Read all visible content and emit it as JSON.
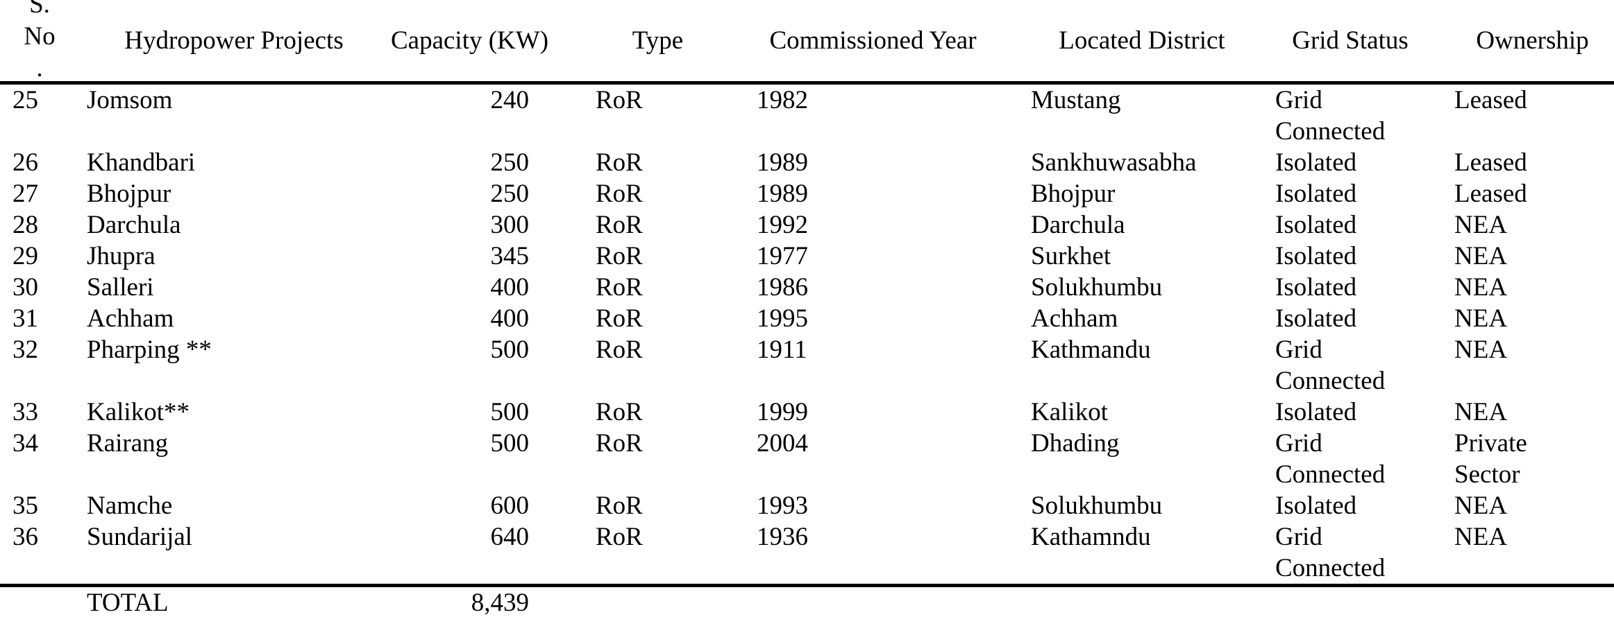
{
  "page": {
    "background": "#ffffff",
    "text_color": "#000000",
    "rule_color": "#000000"
  },
  "table": {
    "headers": {
      "sn": "S.\nNo\n.",
      "project": "Hydropower Projects",
      "capacity": "Capacity (KW)",
      "type": "Type",
      "year": "Commissioned Year",
      "district": "Located District",
      "grid": "Grid Status",
      "ownership": "Ownership"
    },
    "rows": [
      {
        "sn": "25",
        "project": "Jomsom",
        "capacity": "240",
        "type": "RoR",
        "year": "1982",
        "district": "Mustang",
        "grid": "Grid\nConnected",
        "ownership": "Leased"
      },
      {
        "sn": "26",
        "project": "Khandbari",
        "capacity": "250",
        "type": "RoR",
        "year": "1989",
        "district": "Sankhuwasabha",
        "grid": "Isolated",
        "ownership": "Leased"
      },
      {
        "sn": "27",
        "project": "Bhojpur",
        "capacity": "250",
        "type": "RoR",
        "year": "1989",
        "district": "Bhojpur",
        "grid": "Isolated",
        "ownership": "Leased"
      },
      {
        "sn": "28",
        "project": "Darchula",
        "capacity": "300",
        "type": "RoR",
        "year": "1992",
        "district": "Darchula",
        "grid": "Isolated",
        "ownership": "NEA"
      },
      {
        "sn": "29",
        "project": "Jhupra",
        "capacity": "345",
        "type": "RoR",
        "year": "1977",
        "district": "Surkhet",
        "grid": "Isolated",
        "ownership": "NEA"
      },
      {
        "sn": "30",
        "project": "Salleri",
        "capacity": "400",
        "type": "RoR",
        "year": "1986",
        "district": "Solukhumbu",
        "grid": "Isolated",
        "ownership": "NEA"
      },
      {
        "sn": "31",
        "project": "Achham",
        "capacity": "400",
        "type": "RoR",
        "year": "1995",
        "district": "Achham",
        "grid": "Isolated",
        "ownership": "NEA"
      },
      {
        "sn": "32",
        "project": "Pharping **",
        "capacity": "500",
        "type": "RoR",
        "year": "1911",
        "district": "Kathmandu",
        "grid": "Grid\nConnected",
        "ownership": "NEA"
      },
      {
        "sn": "33",
        "project": "Kalikot**",
        "capacity": "500",
        "type": "RoR",
        "year": "1999",
        "district": "Kalikot",
        "grid": "Isolated",
        "ownership": "NEA"
      },
      {
        "sn": "34",
        "project": "Rairang",
        "capacity": "500",
        "type": "RoR",
        "year": "2004",
        "district": "Dhading",
        "grid": "Grid\nConnected",
        "ownership": "Private\nSector"
      },
      {
        "sn": "35",
        "project": "Namche",
        "capacity": "600",
        "type": "RoR",
        "year": "1993",
        "district": "Solukhumbu",
        "grid": "Isolated",
        "ownership": "NEA"
      },
      {
        "sn": "36",
        "project": "Sundarijal",
        "capacity": "640",
        "type": "RoR",
        "year": "1936",
        "district": "Kathamndu",
        "grid": "Grid\nConnected",
        "ownership": "NEA"
      }
    ],
    "total": {
      "label": "TOTAL",
      "capacity": "8,439"
    }
  }
}
